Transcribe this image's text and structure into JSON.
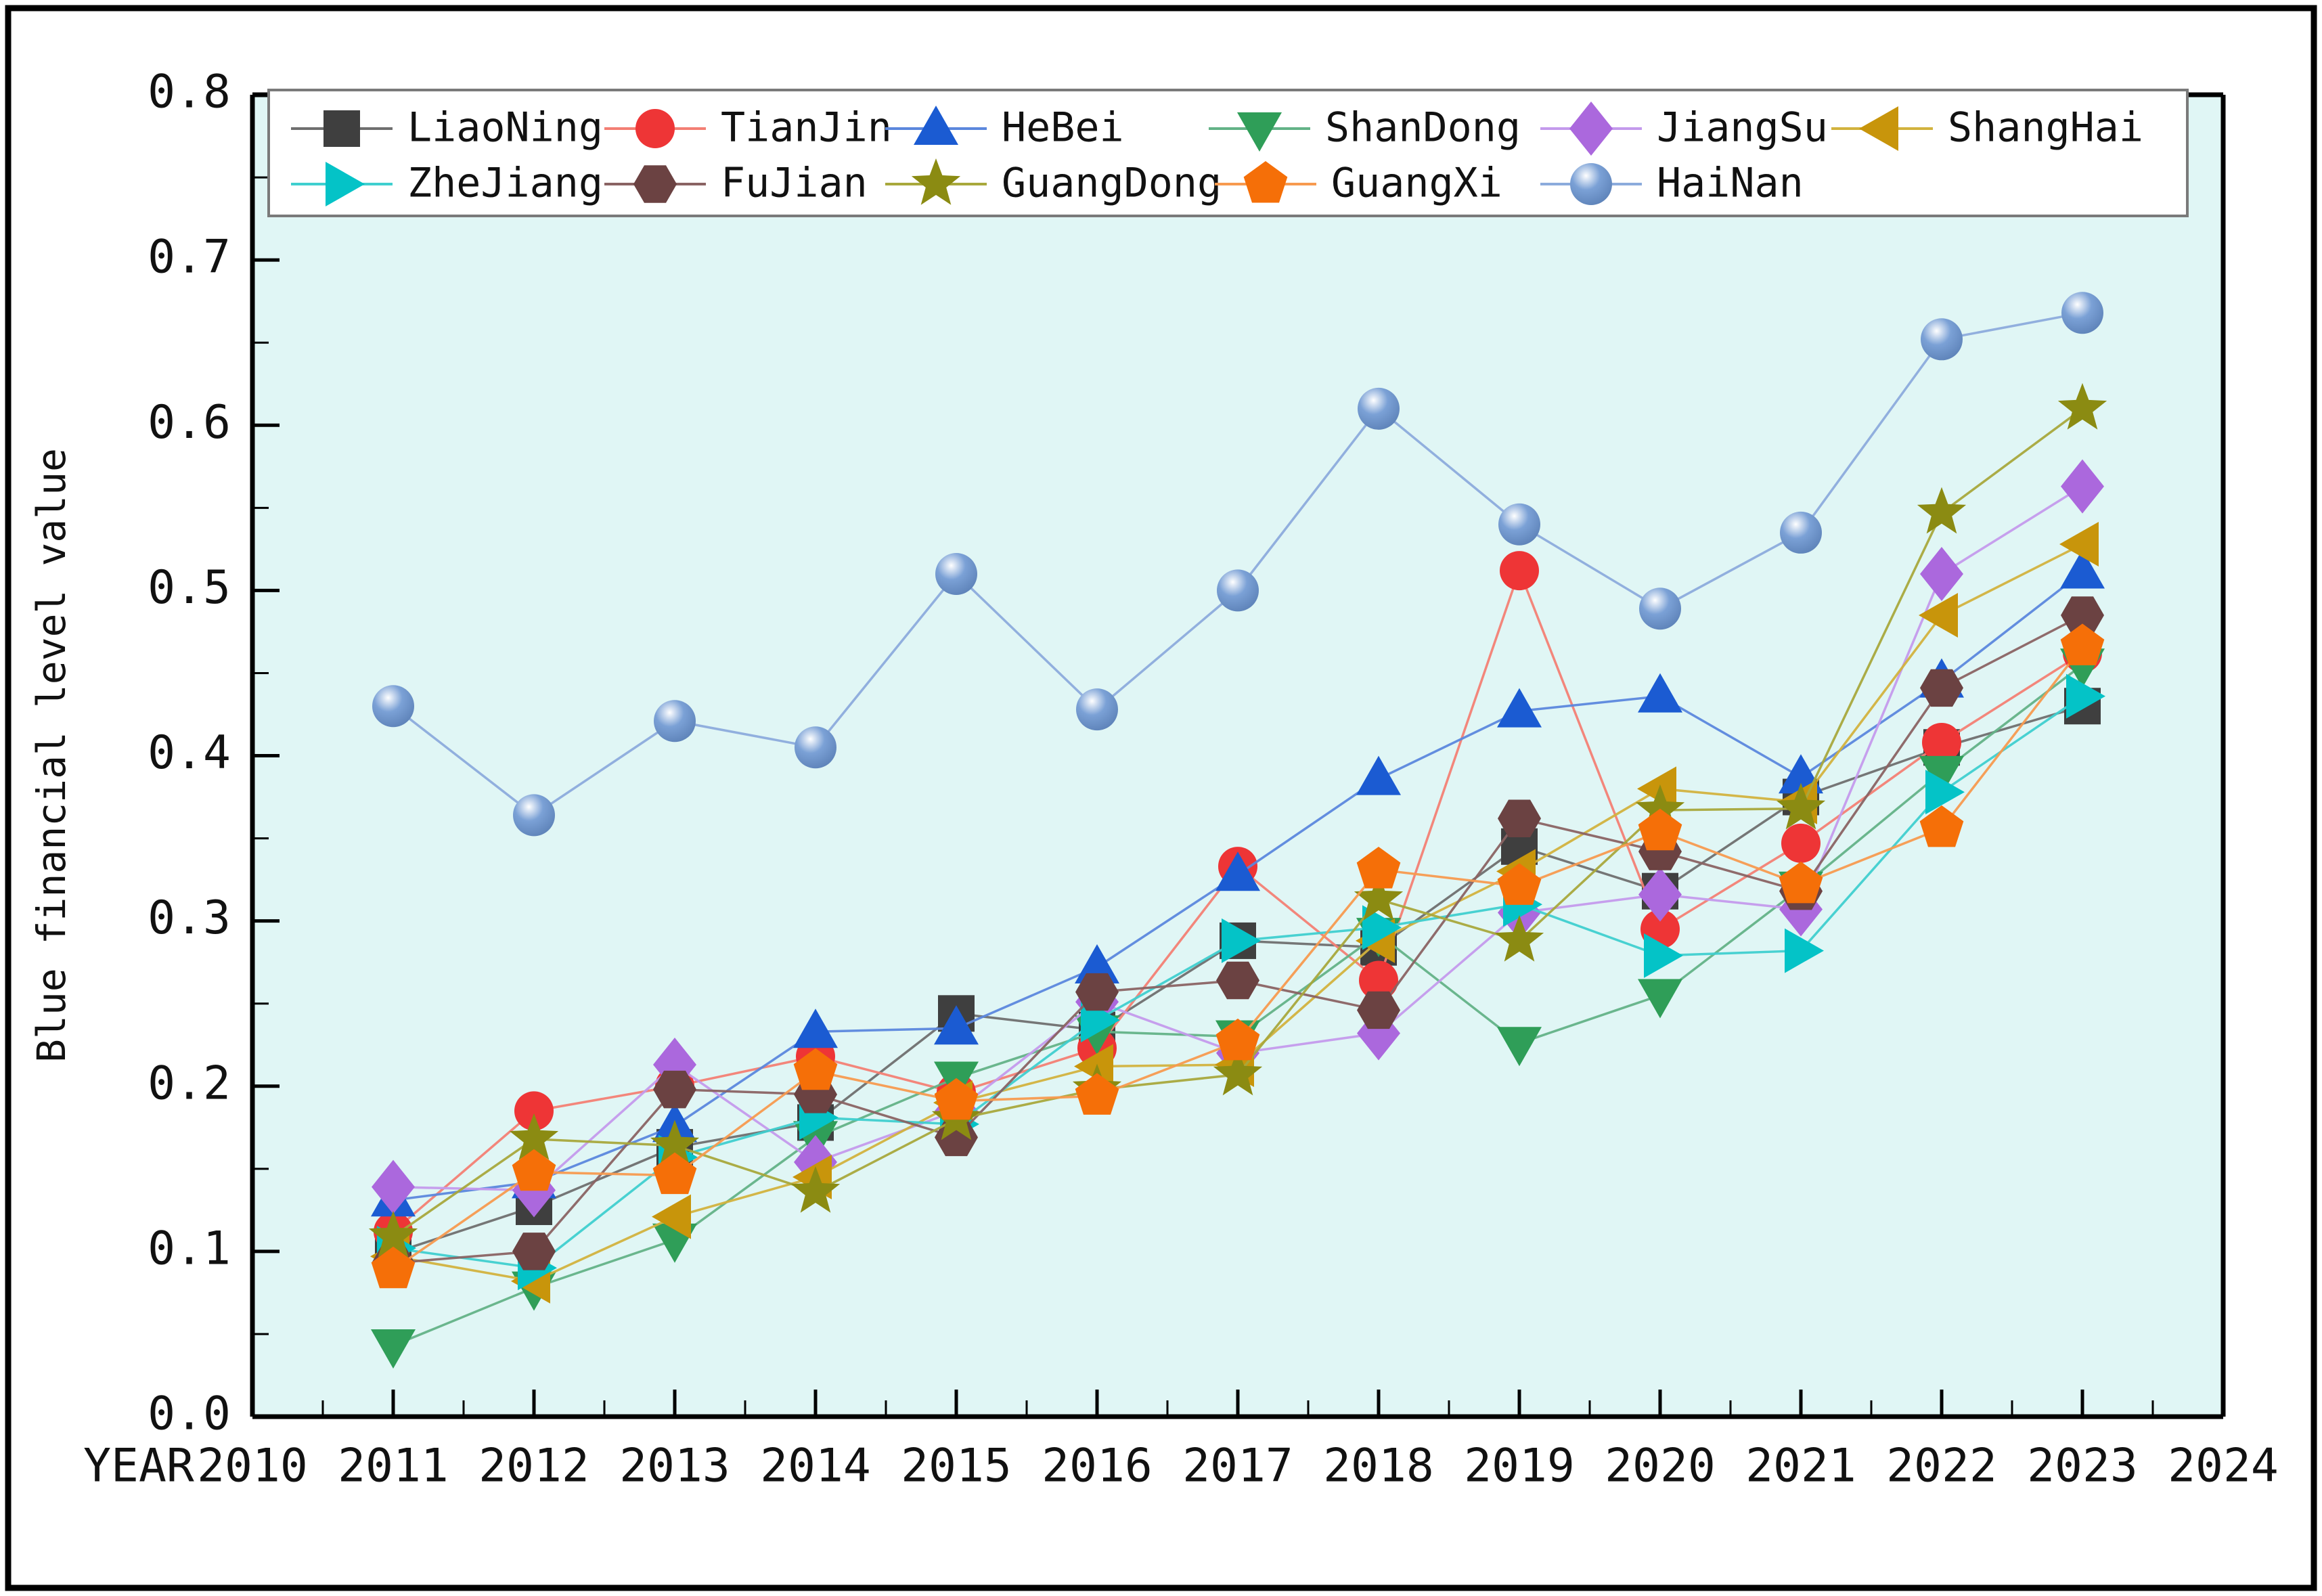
{
  "figure": {
    "frame_color": "#000000",
    "background": "#ffffff"
  },
  "chart_data": {
    "type": "line",
    "title": "",
    "xlabel": "YEAR",
    "ylabel": "Blue financial level value",
    "plot_bg": "#e0f6f5",
    "legend_border": "#7a7a7a",
    "legend_bg": "#ffffff",
    "grid": false,
    "legend_position": "top-inside",
    "xlim": [
      2010,
      2024
    ],
    "ylim": [
      0.0,
      0.8
    ],
    "x_tick_labels": [
      "2010",
      "2011",
      "2012",
      "2013",
      "2014",
      "2015",
      "2016",
      "2017",
      "2018",
      "2019",
      "2020",
      "2021",
      "2022",
      "2023",
      "2024"
    ],
    "y_tick_labels": [
      "0.0",
      "0.1",
      "0.2",
      "0.3",
      "0.4",
      "0.5",
      "0.6",
      "0.7",
      "0.8"
    ],
    "x": [
      2011,
      2012,
      2013,
      2014,
      2015,
      2016,
      2017,
      2018,
      2019,
      2020,
      2021,
      2022,
      2023
    ],
    "series": [
      {
        "name": "LiaoNing",
        "marker": "square",
        "color": "#3f3f3f",
        "line_color": "#6f6f6f",
        "values": [
          0.099,
          0.127,
          0.163,
          0.178,
          0.244,
          0.234,
          0.288,
          0.284,
          0.345,
          0.318,
          0.375,
          0.405,
          0.43
        ]
      },
      {
        "name": "TianJin",
        "marker": "circle",
        "color": "#ee3536",
        "line_color": "#f37f74",
        "values": [
          0.112,
          0.185,
          0.2,
          0.218,
          0.196,
          0.223,
          0.333,
          0.264,
          0.512,
          0.295,
          0.347,
          0.408,
          0.462
        ]
      },
      {
        "name": "HeBei",
        "marker": "triangle-up",
        "color": "#1b5bd2",
        "line_color": "#5b87dd",
        "values": [
          0.131,
          0.142,
          0.176,
          0.233,
          0.235,
          0.272,
          0.328,
          0.386,
          0.427,
          0.436,
          0.387,
          0.445,
          0.511
        ]
      },
      {
        "name": "ShanDong",
        "marker": "triangle-down",
        "color": "#2f9e58",
        "line_color": "#63b287",
        "values": [
          0.043,
          0.078,
          0.107,
          0.169,
          0.205,
          0.233,
          0.23,
          0.292,
          0.226,
          0.255,
          0.32,
          0.39,
          0.455
        ]
      },
      {
        "name": "JiangSu",
        "marker": "diamond",
        "color": "#ab68dd",
        "line_color": "#c49aec",
        "values": [
          0.139,
          0.137,
          0.213,
          0.154,
          0.185,
          0.251,
          0.22,
          0.232,
          0.305,
          0.316,
          0.307,
          0.51,
          0.563
        ]
      },
      {
        "name": "ShangHai",
        "marker": "triangle-left",
        "color": "#c8950b",
        "line_color": "#d2b23e",
        "values": [
          0.097,
          0.082,
          0.121,
          0.145,
          0.19,
          0.212,
          0.213,
          0.288,
          0.33,
          0.38,
          0.372,
          0.485,
          0.528
        ]
      },
      {
        "name": "ZheJiang",
        "marker": "triangle-right",
        "color": "#04c3c7",
        "line_color": "#3fcfcf",
        "values": [
          0.102,
          0.09,
          0.157,
          0.181,
          0.177,
          0.24,
          0.288,
          0.296,
          0.31,
          0.279,
          0.282,
          0.378,
          0.436
        ]
      },
      {
        "name": "FuJian",
        "marker": "hexagon",
        "color": "#6b4242",
        "line_color": "#8a6363",
        "values": [
          0.093,
          0.1,
          0.198,
          0.195,
          0.169,
          0.257,
          0.264,
          0.246,
          0.362,
          0.342,
          0.318,
          0.441,
          0.485
        ]
      },
      {
        "name": "GuangDong",
        "marker": "star",
        "color": "#8b8b12",
        "line_color": "#a8a83c",
        "values": [
          0.109,
          0.168,
          0.164,
          0.136,
          0.18,
          0.198,
          0.207,
          0.313,
          0.288,
          0.367,
          0.368,
          0.547,
          0.61
        ]
      },
      {
        "name": "GuangXi",
        "marker": "pentagon",
        "color": "#f56f08",
        "line_color": "#f79a4f",
        "values": [
          0.089,
          0.148,
          0.146,
          0.209,
          0.191,
          0.194,
          0.227,
          0.331,
          0.321,
          0.354,
          0.322,
          0.356,
          0.466
        ]
      },
      {
        "name": "HaiNan",
        "marker": "sphere",
        "color": "#7ba1d6",
        "line_color": "#8cabdc",
        "values": [
          0.43,
          0.364,
          0.421,
          0.405,
          0.51,
          0.428,
          0.5,
          0.61,
          0.54,
          0.489,
          0.535,
          0.652,
          0.668
        ]
      }
    ]
  }
}
